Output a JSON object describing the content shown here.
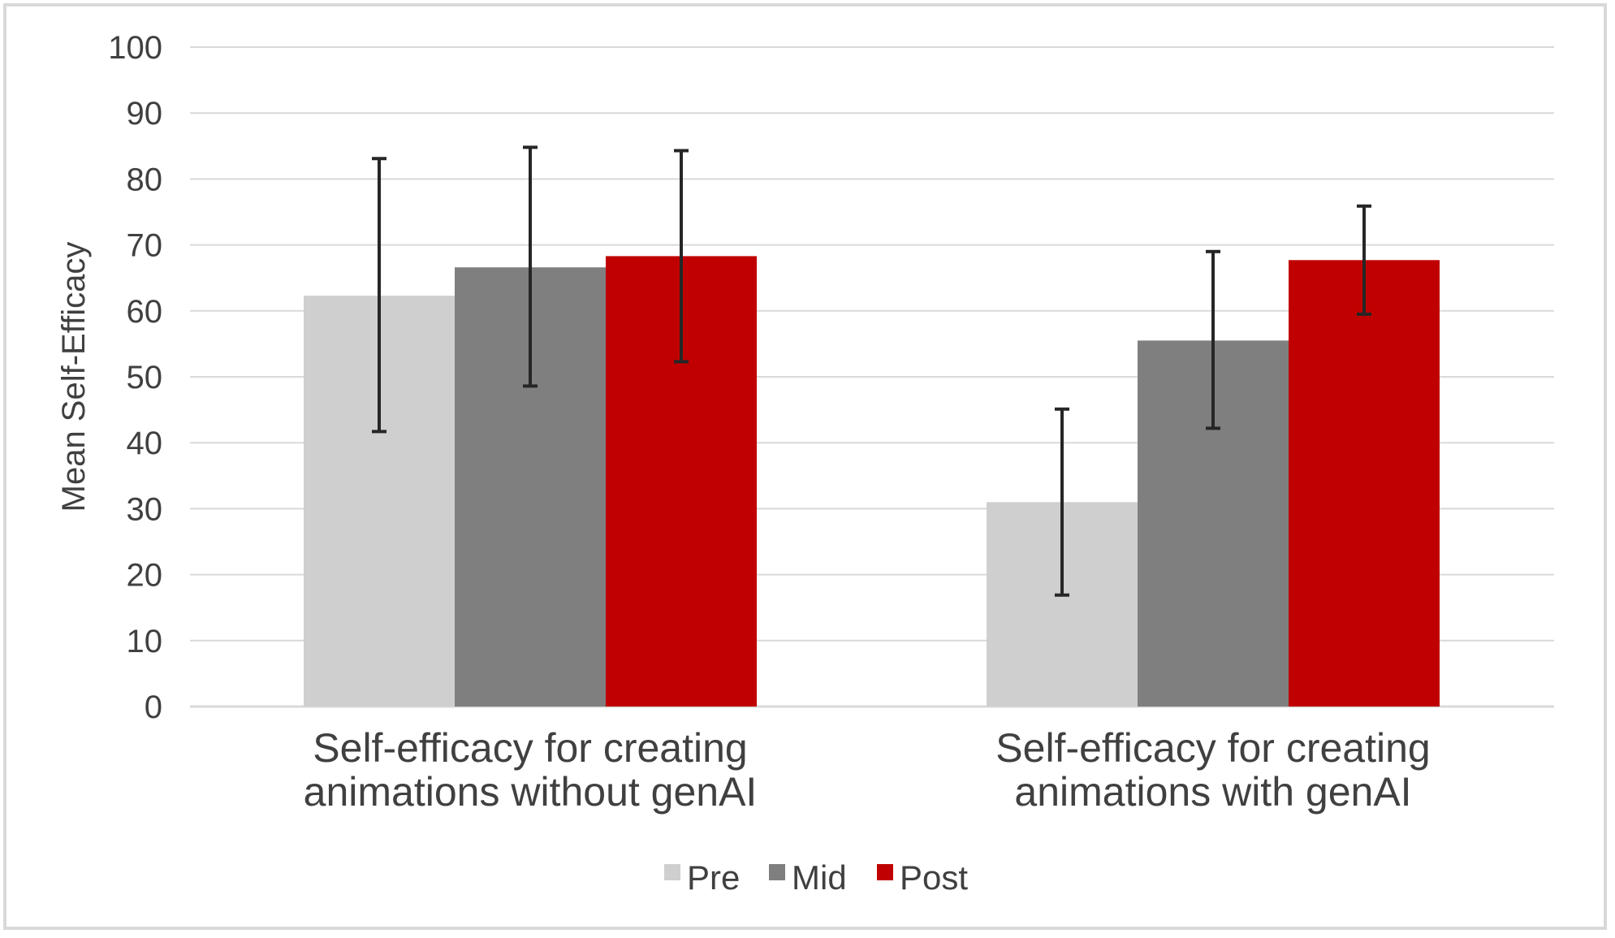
{
  "chart_data": {
    "type": "bar",
    "title": "",
    "xlabel": "",
    "ylabel": "Mean Self-Efficacy",
    "ylim": [
      0,
      100
    ],
    "yticks": [
      0,
      10,
      20,
      30,
      40,
      50,
      60,
      70,
      80,
      90,
      100
    ],
    "grid": true,
    "legend_position": "bottom",
    "categories": [
      [
        "Self-efficacy for creating",
        "animations without genAI"
      ],
      [
        "Self-efficacy for creating",
        "animations with genAI"
      ]
    ],
    "series": [
      {
        "name": "Pre",
        "color": "#d0cfd0",
        "values": [
          62.3,
          31.0
        ],
        "error_low": [
          41.7,
          16.9
        ],
        "error_high": [
          83.1,
          45.1
        ]
      },
      {
        "name": "Mid",
        "color": "#7f7f7f",
        "values": [
          66.6,
          55.5
        ],
        "error_low": [
          48.6,
          42.2
        ],
        "error_high": [
          84.8,
          69.0
        ]
      },
      {
        "name": "Post",
        "color": "#c00000",
        "values": [
          68.3,
          67.7
        ],
        "error_low": [
          52.3,
          59.5
        ],
        "error_high": [
          84.3,
          75.9
        ]
      }
    ]
  }
}
